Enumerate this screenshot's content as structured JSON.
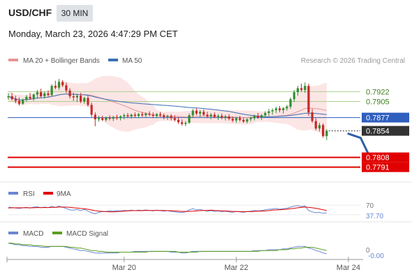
{
  "header": {
    "symbol": "USD/CHF",
    "timeframe": "30 MIN",
    "datetime": "Monday, March 23, 2026 4:47:29 PM CET"
  },
  "colors": {
    "up_candle": "#2f8f2f",
    "down_candle": "#c62828",
    "ma20": "#e89595",
    "bollinger_fill": "#fbe0e0",
    "ma50": "#3a6fb6",
    "level_green": "#a9d18e",
    "support_red": "#e00000",
    "blue_level": "#2f5fbf",
    "rsi_line": "#6a86d1",
    "rsi_9ma": "#e00000",
    "macd_line": "#6a86d1",
    "macd_signal": "#5a9e1e",
    "forecast_arrow": "#2f5fa8"
  },
  "main_legend": {
    "ma20_label": "MA 20 + Bollinger Bands",
    "ma50_label": "MA 50",
    "watermark": "Research © 2026 Trading Central"
  },
  "rsi_legend": {
    "rsi_label": "RSI",
    "ma_label": "9MA"
  },
  "macd_legend": {
    "macd_label": "MACD",
    "signal_label": "MACD Signal"
  },
  "chart_data": {
    "type": "candlestick",
    "price_panel": {
      "y_range": [
        0.777,
        0.796
      ],
      "levels": [
        {
          "label": "0.7922",
          "value": 0.7922,
          "kind": "resistance"
        },
        {
          "label": "0.7905",
          "value": 0.7905,
          "kind": "resistance"
        },
        {
          "label": "0.7877",
          "value": 0.7877,
          "kind": "pivot"
        },
        {
          "label": "0.7854",
          "value": 0.7854,
          "kind": "last"
        },
        {
          "label": "0.7808",
          "value": 0.7808,
          "kind": "support"
        },
        {
          "label": "0.7791",
          "value": 0.7791,
          "kind": "support"
        }
      ],
      "ohlc": [
        [
          0.7912,
          0.7919,
          0.7908,
          0.7914
        ],
        [
          0.7914,
          0.792,
          0.7907,
          0.7909
        ],
        [
          0.7909,
          0.7915,
          0.7902,
          0.7906
        ],
        [
          0.7906,
          0.7912,
          0.7898,
          0.7901
        ],
        [
          0.7901,
          0.791,
          0.7899,
          0.7908
        ],
        [
          0.7908,
          0.7916,
          0.7905,
          0.7913
        ],
        [
          0.7913,
          0.792,
          0.7908,
          0.791
        ],
        [
          0.791,
          0.7919,
          0.7906,
          0.7917
        ],
        [
          0.7917,
          0.7925,
          0.791,
          0.7921
        ],
        [
          0.7921,
          0.7927,
          0.7912,
          0.7914
        ],
        [
          0.7914,
          0.7922,
          0.791,
          0.7919
        ],
        [
          0.7919,
          0.7924,
          0.7913,
          0.7916
        ],
        [
          0.7916,
          0.7935,
          0.7914,
          0.7932
        ],
        [
          0.7932,
          0.7941,
          0.7926,
          0.7929
        ],
        [
          0.7929,
          0.7944,
          0.7925,
          0.7939
        ],
        [
          0.7939,
          0.7942,
          0.793,
          0.7933
        ],
        [
          0.7933,
          0.7938,
          0.792,
          0.7924
        ],
        [
          0.7924,
          0.7928,
          0.791,
          0.7914
        ],
        [
          0.7914,
          0.792,
          0.7906,
          0.7912
        ],
        [
          0.7912,
          0.7918,
          0.7904,
          0.7915
        ],
        [
          0.7915,
          0.792,
          0.7902,
          0.7905
        ],
        [
          0.7905,
          0.7913,
          0.7901,
          0.7911
        ],
        [
          0.7911,
          0.7915,
          0.7896,
          0.7899
        ],
        [
          0.7899,
          0.7903,
          0.7878,
          0.7882
        ],
        [
          0.7882,
          0.7886,
          0.7862,
          0.7874
        ],
        [
          0.7874,
          0.788,
          0.787,
          0.7876
        ],
        [
          0.7876,
          0.788,
          0.7871,
          0.7873
        ],
        [
          0.7873,
          0.7879,
          0.787,
          0.7877
        ],
        [
          0.7877,
          0.7881,
          0.7872,
          0.7875
        ],
        [
          0.7875,
          0.788,
          0.7871,
          0.7878
        ],
        [
          0.7878,
          0.7882,
          0.7873,
          0.7876
        ],
        [
          0.7876,
          0.7881,
          0.7872,
          0.7879
        ],
        [
          0.7879,
          0.7884,
          0.7874,
          0.7881
        ],
        [
          0.7881,
          0.7885,
          0.7876,
          0.7879
        ],
        [
          0.7879,
          0.7884,
          0.7875,
          0.7882
        ],
        [
          0.7882,
          0.7886,
          0.7877,
          0.788
        ],
        [
          0.788,
          0.7885,
          0.7876,
          0.7883
        ],
        [
          0.7883,
          0.7887,
          0.7878,
          0.7881
        ],
        [
          0.7881,
          0.7886,
          0.7877,
          0.7884
        ],
        [
          0.7884,
          0.7888,
          0.7879,
          0.7882
        ],
        [
          0.7882,
          0.7886,
          0.7876,
          0.788
        ],
        [
          0.788,
          0.7885,
          0.7876,
          0.7883
        ],
        [
          0.7883,
          0.7887,
          0.7878,
          0.7881
        ],
        [
          0.7881,
          0.7884,
          0.7874,
          0.7878
        ],
        [
          0.7878,
          0.7882,
          0.7873,
          0.788
        ],
        [
          0.788,
          0.7883,
          0.7872,
          0.7876
        ],
        [
          0.7876,
          0.7881,
          0.787,
          0.7873
        ],
        [
          0.7873,
          0.7878,
          0.7866,
          0.7869
        ],
        [
          0.7869,
          0.7874,
          0.7863,
          0.7866
        ],
        [
          0.7866,
          0.7871,
          0.7862,
          0.7868
        ],
        [
          0.7868,
          0.7884,
          0.7866,
          0.7881
        ],
        [
          0.7881,
          0.7892,
          0.7877,
          0.7889
        ],
        [
          0.7889,
          0.7894,
          0.7881,
          0.7884
        ],
        [
          0.7884,
          0.789,
          0.7878,
          0.7887
        ],
        [
          0.7887,
          0.7891,
          0.788,
          0.7882
        ],
        [
          0.7882,
          0.7887,
          0.7876,
          0.7879
        ],
        [
          0.7879,
          0.7885,
          0.7874,
          0.7882
        ],
        [
          0.7882,
          0.7886,
          0.7876,
          0.7878
        ],
        [
          0.7878,
          0.7883,
          0.7873,
          0.788
        ],
        [
          0.788,
          0.7884,
          0.7874,
          0.7877
        ],
        [
          0.7877,
          0.7882,
          0.7872,
          0.7879
        ],
        [
          0.7879,
          0.7883,
          0.7872,
          0.7875
        ],
        [
          0.7875,
          0.7879,
          0.7869,
          0.7872
        ],
        [
          0.7872,
          0.7878,
          0.7868,
          0.7876
        ],
        [
          0.7876,
          0.788,
          0.787,
          0.7873
        ],
        [
          0.7873,
          0.7877,
          0.7868,
          0.787
        ],
        [
          0.787,
          0.7876,
          0.7867,
          0.7874
        ],
        [
          0.7874,
          0.7879,
          0.787,
          0.7876
        ],
        [
          0.7876,
          0.7882,
          0.7872,
          0.788
        ],
        [
          0.788,
          0.7885,
          0.7875,
          0.7877
        ],
        [
          0.7877,
          0.7883,
          0.7873,
          0.7881
        ],
        [
          0.7881,
          0.7888,
          0.7878,
          0.7885
        ],
        [
          0.7885,
          0.7892,
          0.788,
          0.7888
        ],
        [
          0.7888,
          0.7893,
          0.7882,
          0.789
        ],
        [
          0.789,
          0.7896,
          0.7885,
          0.7893
        ],
        [
          0.7893,
          0.7897,
          0.7886,
          0.789
        ],
        [
          0.789,
          0.7895,
          0.7884,
          0.7893
        ],
        [
          0.7893,
          0.7899,
          0.7889,
          0.7896
        ],
        [
          0.7896,
          0.7912,
          0.7892,
          0.7909
        ],
        [
          0.7909,
          0.7925,
          0.7904,
          0.7921
        ],
        [
          0.7921,
          0.7932,
          0.7915,
          0.7928
        ],
        [
          0.7928,
          0.7936,
          0.7922,
          0.7925
        ],
        [
          0.7925,
          0.7938,
          0.792,
          0.7932
        ],
        [
          0.7932,
          0.7936,
          0.788,
          0.7886
        ],
        [
          0.7886,
          0.7892,
          0.7868,
          0.7871
        ],
        [
          0.7871,
          0.7876,
          0.7855,
          0.7858
        ],
        [
          0.7858,
          0.7868,
          0.7853,
          0.7864
        ],
        [
          0.7864,
          0.7867,
          0.7842,
          0.7845
        ],
        [
          0.7845,
          0.7857,
          0.7838,
          0.7854
        ]
      ]
    },
    "rsi": {
      "labels": [
        "RSI",
        "9MA"
      ],
      "y_range": [
        15,
        85
      ],
      "ticks": [
        "70"
      ],
      "last_value": "37.70",
      "rsi_values": [
        62,
        60,
        58,
        56,
        59,
        61,
        58,
        62,
        63,
        59,
        62,
        60,
        65,
        61,
        66,
        61,
        56,
        50,
        49,
        52,
        47,
        52,
        45,
        38,
        34,
        40,
        43,
        44,
        46,
        45,
        47,
        46,
        48,
        47,
        49,
        47,
        49,
        48,
        50,
        48,
        46,
        49,
        47,
        45,
        47,
        44,
        42,
        40,
        39,
        42,
        50,
        55,
        50,
        52,
        48,
        45,
        47,
        44,
        46,
        43,
        45,
        42,
        40,
        44,
        42,
        40,
        43,
        45,
        48,
        46,
        48,
        51,
        53,
        54,
        56,
        53,
        55,
        57,
        62,
        66,
        68,
        64,
        67,
        48,
        42,
        38,
        40,
        36,
        37.7
      ],
      "ma_values": [
        58,
        59,
        59,
        59,
        59,
        59,
        59,
        59,
        60,
        60,
        60,
        60,
        61,
        61,
        62,
        62,
        62,
        61,
        59,
        58,
        56,
        55,
        53,
        50,
        47,
        45,
        44,
        43,
        42,
        42,
        43,
        44,
        45,
        46,
        47,
        47,
        47,
        47,
        48,
        48,
        48,
        48,
        48,
        48,
        47,
        47,
        46,
        45,
        44,
        44,
        44,
        45,
        46,
        47,
        48,
        48,
        49,
        48,
        47,
        46,
        46,
        45,
        44,
        44,
        43,
        43,
        43,
        43,
        44,
        45,
        45,
        46,
        47,
        49,
        50,
        51,
        52,
        53,
        55,
        57,
        59,
        61,
        62,
        61,
        59,
        57,
        54,
        51,
        48
      ]
    },
    "macd": {
      "labels": [
        "MACD",
        "MACD Signal"
      ],
      "y_range": [
        -0.0011,
        0.0011
      ],
      "ticks": [
        "0"
      ],
      "last_value": "-0.00",
      "macd_values": [
        0.0008,
        0.0007,
        0.0006,
        0.0006,
        0.0005,
        0.0005,
        0.0004,
        0.0004,
        0.0004,
        0.0003,
        0.0003,
        0.0003,
        0.0004,
        0.0004,
        0.0004,
        0.0004,
        0.0003,
        0.0002,
        0.0001,
        0.0,
        -0.0001,
        -0.0001,
        -0.0002,
        -0.0003,
        -0.0004,
        -0.0004,
        -0.0004,
        -0.0004,
        -0.0004,
        -0.0004,
        -0.0004,
        -0.0003,
        -0.0003,
        -0.0003,
        -0.0003,
        -0.0002,
        -0.0002,
        -0.0002,
        -0.0002,
        -0.0002,
        -0.0002,
        -0.0002,
        -0.0002,
        -0.0002,
        -0.0002,
        -0.0003,
        -0.0003,
        -0.0003,
        -0.0004,
        -0.0004,
        -0.0003,
        -0.0002,
        -0.0002,
        -0.0002,
        -0.0002,
        -0.0002,
        -0.0002,
        -0.0002,
        -0.0002,
        -0.0002,
        -0.0002,
        -0.0002,
        -0.0002,
        -0.0002,
        -0.0002,
        -0.0002,
        -0.0002,
        -0.0002,
        -0.0001,
        -0.0001,
        -0.0001,
        -0.0001,
        0.0,
        0.0,
        0.0,
        0.0,
        0.0001,
        0.0001,
        0.0002,
        0.0003,
        0.0004,
        0.0004,
        0.0004,
        0.0002,
        0.0001,
        -0.0001,
        -0.0002,
        -0.0004,
        -0.0005
      ],
      "signal_values": [
        0.0008,
        0.0008,
        0.0007,
        0.0007,
        0.0006,
        0.0006,
        0.0006,
        0.0005,
        0.0005,
        0.0005,
        0.0004,
        0.0004,
        0.0004,
        0.0004,
        0.0004,
        0.0004,
        0.0004,
        0.0003,
        0.0003,
        0.0002,
        0.0002,
        0.0001,
        0.0,
        -0.0001,
        -0.0001,
        -0.0002,
        -0.0002,
        -0.0003,
        -0.0003,
        -0.0003,
        -0.0003,
        -0.0003,
        -0.0003,
        -0.0003,
        -0.0003,
        -0.0003,
        -0.0003,
        -0.0003,
        -0.0003,
        -0.0002,
        -0.0002,
        -0.0002,
        -0.0002,
        -0.0002,
        -0.0002,
        -0.0002,
        -0.0002,
        -0.0003,
        -0.0003,
        -0.0003,
        -0.0003,
        -0.0003,
        -0.0003,
        -0.0002,
        -0.0002,
        -0.0002,
        -0.0002,
        -0.0002,
        -0.0002,
        -0.0002,
        -0.0002,
        -0.0002,
        -0.0002,
        -0.0002,
        -0.0002,
        -0.0002,
        -0.0002,
        -0.0002,
        -0.0002,
        -0.0002,
        -0.0001,
        -0.0001,
        -0.0001,
        -0.0001,
        -0.0001,
        0.0,
        0.0,
        0.0,
        0.0001,
        0.0001,
        0.0002,
        0.0002,
        0.0003,
        0.0003,
        0.0003,
        0.0002,
        0.0001,
        0.0,
        -0.0001
      ]
    },
    "x_axis": {
      "ticks": [
        {
          "label": "Mar 20",
          "index": 32
        },
        {
          "label": "Mar 22",
          "index": 63
        },
        {
          "label": "Mar 24",
          "index": 94
        }
      ]
    },
    "forecast_arrow": {
      "from_index": 94,
      "from_value": 0.7849,
      "to_index": 100,
      "to_value": 0.7803
    }
  }
}
